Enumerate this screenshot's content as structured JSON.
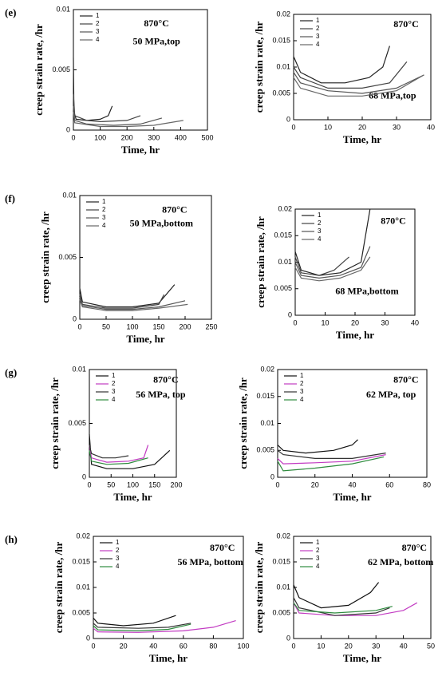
{
  "chart_data": [
    {
      "type": "line",
      "panel": "(e)",
      "annotations": [
        "870°C",
        "50 MPa,top"
      ],
      "xlabel": "Time, hr",
      "ylabel": "creep strain rate, /hr",
      "xlim": [
        0,
        500
      ],
      "ylim": [
        0,
        0.01
      ],
      "xticks": [
        0,
        100,
        200,
        300,
        400,
        500
      ],
      "yticks": [
        0,
        0.005,
        0.01
      ],
      "series": [
        {
          "name": "1",
          "color": "#222",
          "x": [
            0,
            2,
            10,
            50,
            100,
            130,
            145
          ],
          "values": [
            0.006,
            0.0015,
            0.0009,
            0.0008,
            0.0009,
            0.0012,
            0.002
          ]
        },
        {
          "name": "2",
          "color": "#444",
          "x": [
            0,
            5,
            50,
            100,
            200,
            250
          ],
          "values": [
            0.003,
            0.0012,
            0.0008,
            0.0007,
            0.0008,
            0.0012
          ]
        },
        {
          "name": "3",
          "color": "#555",
          "x": [
            0,
            5,
            50,
            150,
            250,
            330
          ],
          "values": [
            0.002,
            0.0008,
            0.0005,
            0.0004,
            0.0005,
            0.001
          ]
        },
        {
          "name": "4",
          "color": "#666",
          "x": [
            0,
            5,
            100,
            200,
            300,
            410
          ],
          "values": [
            0.0015,
            0.0006,
            0.0003,
            0.0003,
            0.0004,
            0.0008
          ]
        }
      ]
    },
    {
      "type": "line",
      "annotations": [
        "870°C",
        "68 MPa,top"
      ],
      "xlabel": "Time, hr",
      "ylabel": "creep strain rate, /hr",
      "xlim": [
        0,
        40
      ],
      "ylim": [
        0,
        0.02
      ],
      "xticks": [
        0,
        10,
        20,
        30,
        40
      ],
      "yticks": [
        0,
        0.005,
        0.01,
        0.015,
        0.02
      ],
      "series": [
        {
          "name": "1",
          "color": "#222",
          "x": [
            0,
            2,
            8,
            15,
            22,
            26,
            28
          ],
          "values": [
            0.012,
            0.009,
            0.007,
            0.007,
            0.008,
            0.01,
            0.014
          ]
        },
        {
          "name": "2",
          "color": "#444",
          "x": [
            0,
            2,
            10,
            20,
            28,
            33
          ],
          "values": [
            0.01,
            0.008,
            0.006,
            0.006,
            0.007,
            0.011
          ]
        },
        {
          "name": "3",
          "color": "#555",
          "x": [
            0,
            2,
            10,
            20,
            30,
            38
          ],
          "values": [
            0.009,
            0.007,
            0.0055,
            0.005,
            0.006,
            0.0085
          ]
        },
        {
          "name": "4",
          "color": "#666",
          "x": [
            0,
            2,
            10,
            20,
            30,
            38
          ],
          "values": [
            0.008,
            0.006,
            0.0045,
            0.0045,
            0.0055,
            0.0085
          ]
        }
      ]
    },
    {
      "type": "line",
      "panel": "(f)",
      "annotations": [
        "870°C",
        "50 MPa,bottom"
      ],
      "xlabel": "Time, hr",
      "ylabel": "creep strain rate, /hr",
      "xlim": [
        0,
        250
      ],
      "ylim": [
        0,
        0.01
      ],
      "xticks": [
        0,
        50,
        100,
        150,
        200,
        250
      ],
      "yticks": [
        0,
        0.005,
        0.01
      ],
      "series": [
        {
          "name": "1",
          "color": "#222",
          "x": [
            0,
            5,
            50,
            100,
            150,
            180
          ],
          "values": [
            0.0025,
            0.0014,
            0.001,
            0.001,
            0.0013,
            0.0028
          ]
        },
        {
          "name": "2",
          "color": "#444",
          "x": [
            0,
            5,
            50,
            100,
            150,
            160
          ],
          "values": [
            0.002,
            0.0012,
            0.0009,
            0.0009,
            0.0012,
            0.002
          ]
        },
        {
          "name": "3",
          "color": "#555",
          "x": [
            0,
            5,
            50,
            100,
            150,
            200
          ],
          "values": [
            0.0018,
            0.0011,
            0.0008,
            0.0008,
            0.001,
            0.0015
          ]
        },
        {
          "name": "4",
          "color": "#666",
          "x": [
            0,
            5,
            50,
            100,
            150,
            205
          ],
          "values": [
            0.0016,
            0.001,
            0.0007,
            0.0007,
            0.0009,
            0.0012
          ]
        }
      ]
    },
    {
      "type": "line",
      "annotations": [
        "870°C",
        "68 MPa,bottom"
      ],
      "xlabel": "Time, hr",
      "ylabel": "creep strain rate, /hr",
      "xlim": [
        0,
        40
      ],
      "ylim": [
        0,
        0.02
      ],
      "xticks": [
        0,
        10,
        20,
        30,
        40
      ],
      "yticks": [
        0,
        0.005,
        0.01,
        0.015,
        0.02
      ],
      "series": [
        {
          "name": "1",
          "color": "#222",
          "x": [
            0,
            2,
            8,
            15,
            22,
            25
          ],
          "values": [
            0.012,
            0.0085,
            0.0075,
            0.008,
            0.01,
            0.02
          ]
        },
        {
          "name": "2",
          "color": "#444",
          "x": [
            0,
            2,
            8,
            13,
            18
          ],
          "values": [
            0.011,
            0.008,
            0.0075,
            0.0085,
            0.011
          ]
        },
        {
          "name": "3",
          "color": "#555",
          "x": [
            0,
            2,
            8,
            15,
            22,
            25
          ],
          "values": [
            0.01,
            0.0075,
            0.007,
            0.0075,
            0.009,
            0.013
          ]
        },
        {
          "name": "4",
          "color": "#666",
          "x": [
            0,
            2,
            8,
            15,
            22,
            25
          ],
          "values": [
            0.009,
            0.007,
            0.0065,
            0.007,
            0.0085,
            0.011
          ]
        }
      ]
    },
    {
      "type": "line",
      "panel": "(g)",
      "annotations": [
        "870°C",
        "56 MPa, top"
      ],
      "xlabel": "Time, hr",
      "ylabel": "creep strain rate, /hr",
      "xlim": [
        0,
        200
      ],
      "ylim": [
        0,
        0.01
      ],
      "xticks": [
        0,
        50,
        100,
        150,
        200
      ],
      "yticks": [
        0,
        0.005,
        0.01
      ],
      "series": [
        {
          "name": "1",
          "color": "#111",
          "x": [
            0,
            5,
            40,
            100,
            150,
            185
          ],
          "values": [
            0.004,
            0.0012,
            0.0008,
            0.0008,
            0.0012,
            0.0025
          ]
        },
        {
          "name": "2",
          "color": "#c23bc2",
          "x": [
            0,
            5,
            40,
            90,
            125,
            135
          ],
          "values": [
            0.003,
            0.0018,
            0.0014,
            0.0015,
            0.0018,
            0.003
          ]
        },
        {
          "name": "3",
          "color": "#333",
          "x": [
            0,
            5,
            30,
            60,
            90
          ],
          "values": [
            0.003,
            0.0022,
            0.0018,
            0.0018,
            0.002
          ]
        },
        {
          "name": "4",
          "color": "#2e8b3e",
          "x": [
            0,
            5,
            40,
            90,
            135
          ],
          "values": [
            0.0025,
            0.0015,
            0.0012,
            0.0013,
            0.0018
          ]
        }
      ]
    },
    {
      "type": "line",
      "annotations": [
        "870°C",
        "62 MPa, top"
      ],
      "xlabel": "Time, hr",
      "ylabel": "creep strain rate, /hr",
      "xlim": [
        0,
        80
      ],
      "ylim": [
        0,
        0.02
      ],
      "xticks": [
        0,
        20,
        40,
        60,
        80
      ],
      "yticks": [
        0,
        0.005,
        0.01,
        0.015,
        0.02
      ],
      "series": [
        {
          "name": "1",
          "color": "#111",
          "x": [
            0,
            3,
            15,
            30,
            40,
            43
          ],
          "values": [
            0.006,
            0.005,
            0.0045,
            0.005,
            0.006,
            0.007
          ]
        },
        {
          "name": "2",
          "color": "#c23bc2",
          "x": [
            0,
            3,
            20,
            40,
            58
          ],
          "values": [
            0.0035,
            0.0025,
            0.0027,
            0.003,
            0.0042
          ]
        },
        {
          "name": "3",
          "color": "#333",
          "x": [
            0,
            3,
            20,
            40,
            58
          ],
          "values": [
            0.005,
            0.0042,
            0.0035,
            0.0035,
            0.0045
          ]
        },
        {
          "name": "4",
          "color": "#2e8b3e",
          "x": [
            0,
            3,
            20,
            40,
            57
          ],
          "values": [
            0.003,
            0.0012,
            0.0017,
            0.0025,
            0.0038
          ]
        }
      ]
    },
    {
      "type": "line",
      "panel": "(h)",
      "annotations": [
        "870°C",
        "56 MPa, bottom"
      ],
      "xlabel": "Time, hr",
      "ylabel": "creep strain rate, /hr",
      "xlim": [
        0,
        100
      ],
      "ylim": [
        0,
        0.02
      ],
      "xticks": [
        0,
        20,
        40,
        60,
        80,
        100
      ],
      "yticks": [
        0,
        0.005,
        0.01,
        0.015,
        0.02
      ],
      "series": [
        {
          "name": "1",
          "color": "#111",
          "x": [
            0,
            3,
            20,
            40,
            55
          ],
          "values": [
            0.004,
            0.003,
            0.0025,
            0.003,
            0.0045
          ]
        },
        {
          "name": "2",
          "color": "#c23bc2",
          "x": [
            0,
            3,
            30,
            60,
            80,
            95
          ],
          "values": [
            0.002,
            0.0013,
            0.0012,
            0.0015,
            0.0022,
            0.0035
          ]
        },
        {
          "name": "3",
          "color": "#333",
          "x": [
            0,
            3,
            30,
            50,
            65
          ],
          "values": [
            0.003,
            0.0022,
            0.002,
            0.0022,
            0.003
          ]
        },
        {
          "name": "4",
          "color": "#2e8b3e",
          "x": [
            0,
            3,
            30,
            50,
            65
          ],
          "values": [
            0.0025,
            0.0017,
            0.0015,
            0.0018,
            0.0028
          ]
        }
      ]
    },
    {
      "type": "line",
      "annotations": [
        "870°C",
        "62 MPa, bottom"
      ],
      "xlabel": "Time, hr",
      "ylabel": "creep strain rate, /hr",
      "xlim": [
        0,
        50
      ],
      "ylim": [
        0,
        0.02
      ],
      "xticks": [
        0,
        10,
        20,
        30,
        40,
        50
      ],
      "yticks": [
        0,
        0.005,
        0.01,
        0.015,
        0.02
      ],
      "series": [
        {
          "name": "1",
          "color": "#111",
          "x": [
            0,
            2,
            10,
            20,
            28,
            31
          ],
          "values": [
            0.0105,
            0.008,
            0.006,
            0.0065,
            0.009,
            0.011
          ]
        },
        {
          "name": "2",
          "color": "#c23bc2",
          "x": [
            0,
            2,
            15,
            30,
            40,
            45
          ],
          "values": [
            0.007,
            0.005,
            0.0045,
            0.0045,
            0.0055,
            0.007
          ]
        },
        {
          "name": "3",
          "color": "#333",
          "x": [
            0,
            2,
            15,
            30,
            35
          ],
          "values": [
            0.008,
            0.006,
            0.0045,
            0.005,
            0.006
          ]
        },
        {
          "name": "4",
          "color": "#2e8b3e",
          "x": [
            0,
            2,
            15,
            30,
            36
          ],
          "values": [
            0.007,
            0.0055,
            0.005,
            0.0055,
            0.0063
          ]
        }
      ]
    }
  ]
}
